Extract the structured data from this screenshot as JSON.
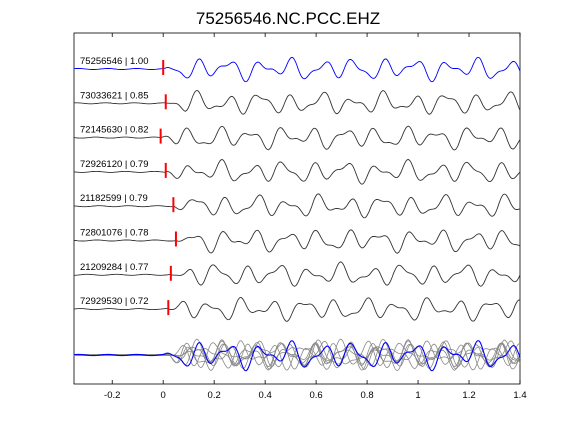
{
  "chart_data": {
    "type": "line",
    "title": "75256546.NC.PCC.EHZ",
    "xlabel": "",
    "ylabel": "",
    "xlim": [
      -0.35,
      1.4
    ],
    "xticks": [
      "-0.2",
      "0",
      "0.2",
      "0.4",
      "0.6",
      "0.8",
      "1",
      "1.2",
      "1.4"
    ],
    "xtick_values": [
      -0.2,
      0,
      0.2,
      0.4,
      0.6,
      0.8,
      1.0,
      1.2,
      1.4
    ],
    "grid": false,
    "legend": "none",
    "traces": [
      {
        "event_id": "75256546",
        "correlation": "1.00",
        "pick_time": 0.0,
        "color": "#0000ff"
      },
      {
        "event_id": "73033621",
        "correlation": "0.85",
        "pick_time": 0.01,
        "color": "#333333"
      },
      {
        "event_id": "72145630",
        "correlation": "0.82",
        "pick_time": -0.01,
        "color": "#333333"
      },
      {
        "event_id": "72926120",
        "correlation": "0.79",
        "pick_time": 0.01,
        "color": "#333333"
      },
      {
        "event_id": "21182599",
        "correlation": "0.79",
        "pick_time": 0.04,
        "color": "#333333"
      },
      {
        "event_id": "72801076",
        "correlation": "0.78",
        "pick_time": 0.05,
        "color": "#333333"
      },
      {
        "event_id": "21209284",
        "correlation": "0.77",
        "pick_time": 0.03,
        "color": "#333333"
      },
      {
        "event_id": "72929530",
        "correlation": "0.72",
        "pick_time": 0.02,
        "color": "#333333"
      }
    ],
    "overlay": {
      "description_color_reference": "#0000ff",
      "description_color_others": "#888888"
    },
    "pick_marker_color": "#ff0000"
  }
}
